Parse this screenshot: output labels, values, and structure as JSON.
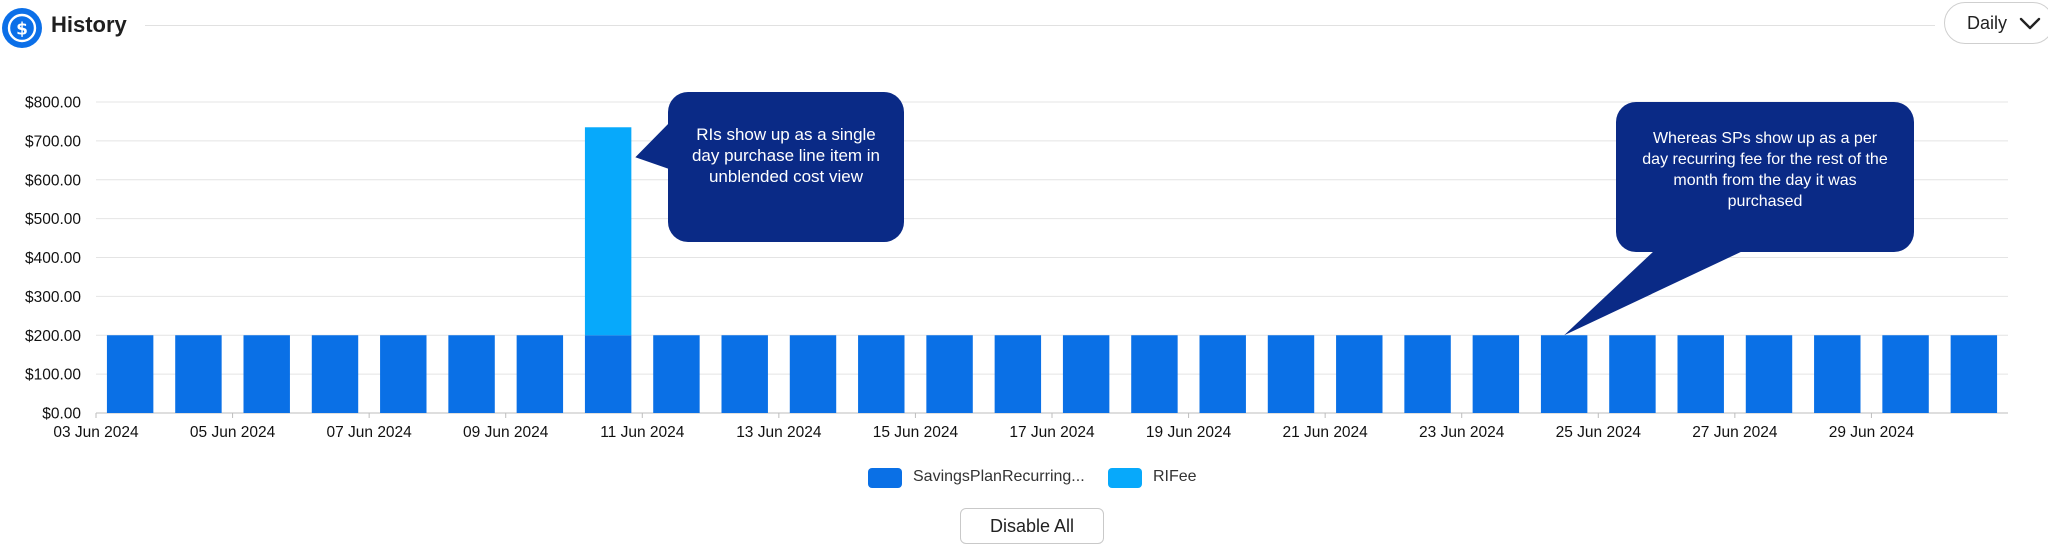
{
  "header": {
    "icon": "dollar-icon",
    "title": "History",
    "period": "Daily",
    "period_icon": "chevron-down-icon"
  },
  "colors": {
    "savings_plan": "#0a70e6",
    "ri_fee": "#07a9fb",
    "annotation_bg": "#0a2a86"
  },
  "annotations": {
    "ri_note": "RIs show up as a single day purchase line item in unblended cost view",
    "sp_note": "Whereas SPs show up as a per day recurring fee for the rest of the month from the day it was purchased"
  },
  "legend": {
    "savings_plan_label": "SavingsPlanRecurring...",
    "ri_fee_label": "RIFee"
  },
  "actions": {
    "disable_all": "Disable All"
  },
  "chart_data": {
    "type": "bar",
    "stacked": true,
    "categories": [
      "03 Jun 2024",
      "04 Jun 2024",
      "05 Jun 2024",
      "06 Jun 2024",
      "07 Jun 2024",
      "08 Jun 2024",
      "09 Jun 2024",
      "10 Jun 2024",
      "11 Jun 2024",
      "12 Jun 2024",
      "13 Jun 2024",
      "14 Jun 2024",
      "15 Jun 2024",
      "16 Jun 2024",
      "17 Jun 2024",
      "18 Jun 2024",
      "19 Jun 2024",
      "20 Jun 2024",
      "21 Jun 2024",
      "22 Jun 2024",
      "23 Jun 2024",
      "24 Jun 2024",
      "25 Jun 2024",
      "26 Jun 2024",
      "27 Jun 2024",
      "28 Jun 2024",
      "29 Jun 2024",
      "30 Jun 2024"
    ],
    "x_tick_labels": [
      "03 Jun 2024",
      "05 Jun 2024",
      "07 Jun 2024",
      "09 Jun 2024",
      "11 Jun 2024",
      "13 Jun 2024",
      "15 Jun 2024",
      "17 Jun 2024",
      "19 Jun 2024",
      "21 Jun 2024",
      "23 Jun 2024",
      "25 Jun 2024",
      "27 Jun 2024",
      "29 Jun 2024"
    ],
    "series": [
      {
        "name": "SavingsPlanRecurring...",
        "values": [
          200,
          200,
          200,
          200,
          200,
          200,
          200,
          200,
          200,
          200,
          200,
          200,
          200,
          200,
          200,
          200,
          200,
          200,
          200,
          200,
          200,
          200,
          200,
          200,
          200,
          200,
          200,
          200
        ]
      },
      {
        "name": "RIFee",
        "values": [
          0,
          0,
          0,
          0,
          0,
          0,
          0,
          535,
          0,
          0,
          0,
          0,
          0,
          0,
          0,
          0,
          0,
          0,
          0,
          0,
          0,
          0,
          0,
          0,
          0,
          0,
          0,
          0
        ]
      }
    ],
    "y_ticks": [
      "$0.00",
      "$100.00",
      "$200.00",
      "$300.00",
      "$400.00",
      "$500.00",
      "$600.00",
      "$700.00",
      "$800.00"
    ],
    "ylim": [
      0,
      800
    ],
    "grid": true,
    "legend_position": "bottom-center"
  }
}
